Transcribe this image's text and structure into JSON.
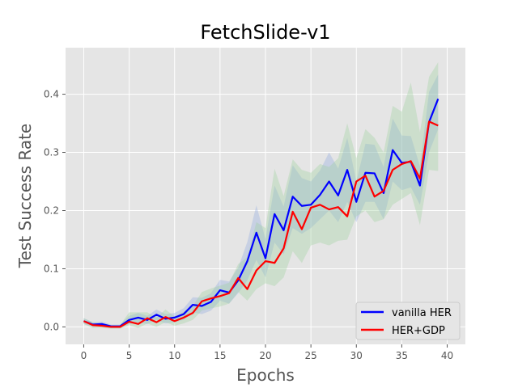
{
  "chart_data": {
    "type": "line",
    "title": "FetchSlide-v1",
    "xlabel": "Epochs",
    "ylabel": "Test Success Rate",
    "xlim": [
      -2,
      42
    ],
    "ylim": [
      -0.03,
      0.48
    ],
    "xticks": [
      0,
      5,
      10,
      15,
      20,
      25,
      30,
      35,
      40
    ],
    "yticks": [
      0.0,
      0.1,
      0.2,
      0.3,
      0.4
    ],
    "ytick_labels": [
      "0.0",
      "0.1",
      "0.2",
      "0.3",
      "0.4"
    ],
    "grid": true,
    "legend_position": "lower-right",
    "x": [
      0,
      1,
      2,
      3,
      4,
      5,
      6,
      7,
      8,
      9,
      10,
      11,
      12,
      13,
      14,
      15,
      16,
      17,
      18,
      19,
      20,
      21,
      22,
      23,
      24,
      25,
      26,
      27,
      28,
      29,
      30,
      31,
      32,
      33,
      34,
      35,
      36,
      37,
      38,
      39,
      40
    ],
    "series": [
      {
        "name": "vanilla HER",
        "color": "#0000ff",
        "band_color": "#8fa8e0",
        "values": [
          0.01,
          0.004,
          0.005,
          0.001,
          0.001,
          0.012,
          0.016,
          0.012,
          0.021,
          0.014,
          0.016,
          0.022,
          0.038,
          0.036,
          0.043,
          0.063,
          0.059,
          0.08,
          0.113,
          0.162,
          0.118,
          0.194,
          0.166,
          0.224,
          0.208,
          0.21,
          0.227,
          0.25,
          0.226,
          0.27,
          0.215,
          0.265,
          0.264,
          0.23,
          0.304,
          0.282,
          0.284,
          0.243,
          0.352,
          0.392,
          null
        ],
        "lower": [
          0.005,
          0.0,
          0.001,
          -0.002,
          -0.002,
          0.005,
          0.008,
          0.005,
          0.012,
          0.006,
          0.008,
          0.012,
          0.025,
          0.022,
          0.028,
          0.045,
          0.04,
          0.058,
          0.08,
          0.115,
          0.085,
          0.145,
          0.125,
          0.17,
          0.16,
          0.17,
          0.185,
          0.2,
          0.18,
          0.215,
          0.18,
          0.215,
          0.215,
          0.185,
          0.25,
          0.235,
          0.24,
          0.21,
          0.3,
          0.34,
          null
        ],
        "upper": [
          0.015,
          0.008,
          0.009,
          0.004,
          0.004,
          0.019,
          0.024,
          0.019,
          0.03,
          0.022,
          0.024,
          0.032,
          0.051,
          0.05,
          0.058,
          0.081,
          0.078,
          0.102,
          0.146,
          0.209,
          0.151,
          0.243,
          0.207,
          0.278,
          0.256,
          0.25,
          0.269,
          0.3,
          0.272,
          0.325,
          0.25,
          0.315,
          0.313,
          0.275,
          0.358,
          0.329,
          0.328,
          0.276,
          0.404,
          0.434,
          null
        ]
      },
      {
        "name": "HER+GDP",
        "color": "#ff0000",
        "band_color": "#9fd09f",
        "values": [
          0.01,
          0.003,
          0.002,
          0.0,
          0.0,
          0.009,
          0.005,
          0.015,
          0.008,
          0.017,
          0.01,
          0.016,
          0.024,
          0.044,
          0.049,
          0.053,
          0.058,
          0.084,
          0.065,
          0.097,
          0.113,
          0.11,
          0.135,
          0.198,
          0.168,
          0.205,
          0.21,
          0.202,
          0.206,
          0.19,
          0.25,
          0.26,
          0.224,
          0.234,
          0.27,
          0.28,
          0.285,
          0.255,
          0.353,
          0.346,
          null
        ],
        "lower": [
          0.005,
          -0.002,
          -0.002,
          -0.003,
          -0.003,
          0.003,
          -0.002,
          0.006,
          0.0,
          0.008,
          0.002,
          0.006,
          0.012,
          0.028,
          0.032,
          0.035,
          0.04,
          0.06,
          0.045,
          0.065,
          0.075,
          0.07,
          0.085,
          0.13,
          0.11,
          0.14,
          0.145,
          0.14,
          0.148,
          0.15,
          0.19,
          0.2,
          0.18,
          0.185,
          0.21,
          0.22,
          0.23,
          0.175,
          0.27,
          0.268,
          null
        ],
        "upper": [
          0.015,
          0.008,
          0.006,
          0.003,
          0.003,
          0.025,
          0.025,
          0.025,
          0.016,
          0.03,
          0.018,
          0.026,
          0.036,
          0.06,
          0.066,
          0.071,
          0.076,
          0.108,
          0.12,
          0.18,
          0.17,
          0.272,
          0.225,
          0.288,
          0.27,
          0.265,
          0.28,
          0.275,
          0.29,
          0.35,
          0.29,
          0.34,
          0.325,
          0.3,
          0.38,
          0.37,
          0.42,
          0.335,
          0.43,
          0.455,
          null
        ]
      }
    ]
  }
}
